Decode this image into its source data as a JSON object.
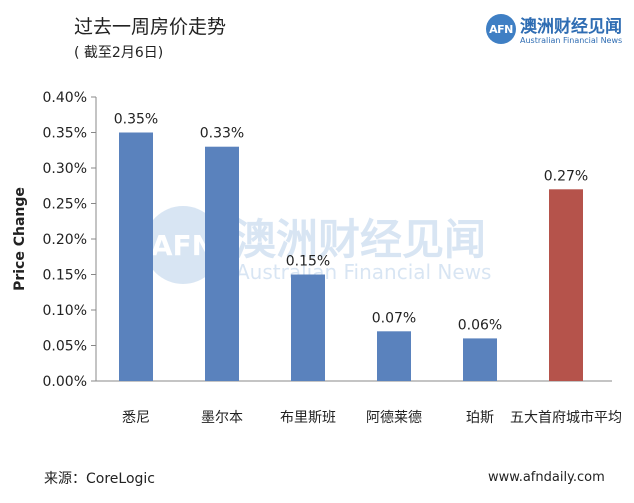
{
  "header": {
    "title": "过去一周房价走势",
    "subtitle": "( 截至2月6日)"
  },
  "logo": {
    "mark": "AFN",
    "name_cn": "澳洲财经见闻",
    "name_en": "Australian Financial News"
  },
  "footer": {
    "source": "来源：CoreLogic",
    "url": "www.afndaily.com"
  },
  "colors": {
    "bar_primary": "#5a82bd",
    "bar_highlight": "#b5534b",
    "axis": "#888888",
    "brand": "#3f7fc4"
  },
  "chart_data": {
    "type": "bar",
    "title": "过去一周房价走势",
    "subtitle": "( 截至2月6日)",
    "xlabel": "",
    "ylabel": "Price Change",
    "categories": [
      "悉尼",
      "墨尔本",
      "布里斯班",
      "阿德莱德",
      "珀斯",
      "五大首府城市平均"
    ],
    "values": [
      0.35,
      0.33,
      0.15,
      0.07,
      0.06,
      0.27
    ],
    "value_labels": [
      "0.35%",
      "0.33%",
      "0.15%",
      "0.07%",
      "0.06%",
      "0.27%"
    ],
    "bar_colors": [
      "#5a82bd",
      "#5a82bd",
      "#5a82bd",
      "#5a82bd",
      "#5a82bd",
      "#b5534b"
    ],
    "ylim": [
      0,
      0.4
    ],
    "yticks": [
      0,
      0.05,
      0.1,
      0.15,
      0.2,
      0.25,
      0.3,
      0.35,
      0.4
    ],
    "ytick_labels": [
      "0.00%",
      "0.05%",
      "0.10%",
      "0.15%",
      "0.20%",
      "0.25%",
      "0.30%",
      "0.35%",
      "0.40%"
    ],
    "grid": false,
    "legend": "none"
  }
}
